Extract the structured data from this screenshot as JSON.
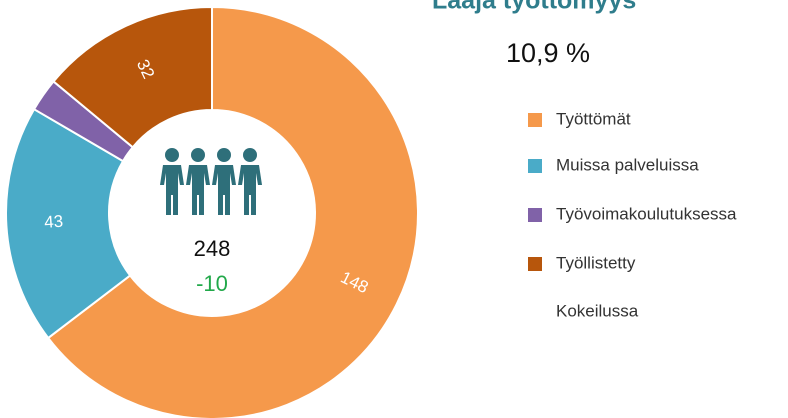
{
  "title": "Laaja työttömyys",
  "rate": "10,9 %",
  "chart_data": {
    "type": "donut",
    "categories": [
      "Työttömät",
      "Muissa palveluissa",
      "Työvoimakoulutuksessa",
      "Työllistetty"
    ],
    "values": [
      148,
      43,
      6,
      32
    ],
    "colors": [
      "#f5994b",
      "#4aabc8",
      "#8062a8",
      "#b7560c"
    ],
    "extra_legend": "Kokeilussa",
    "total": 248,
    "change": "-10"
  }
}
